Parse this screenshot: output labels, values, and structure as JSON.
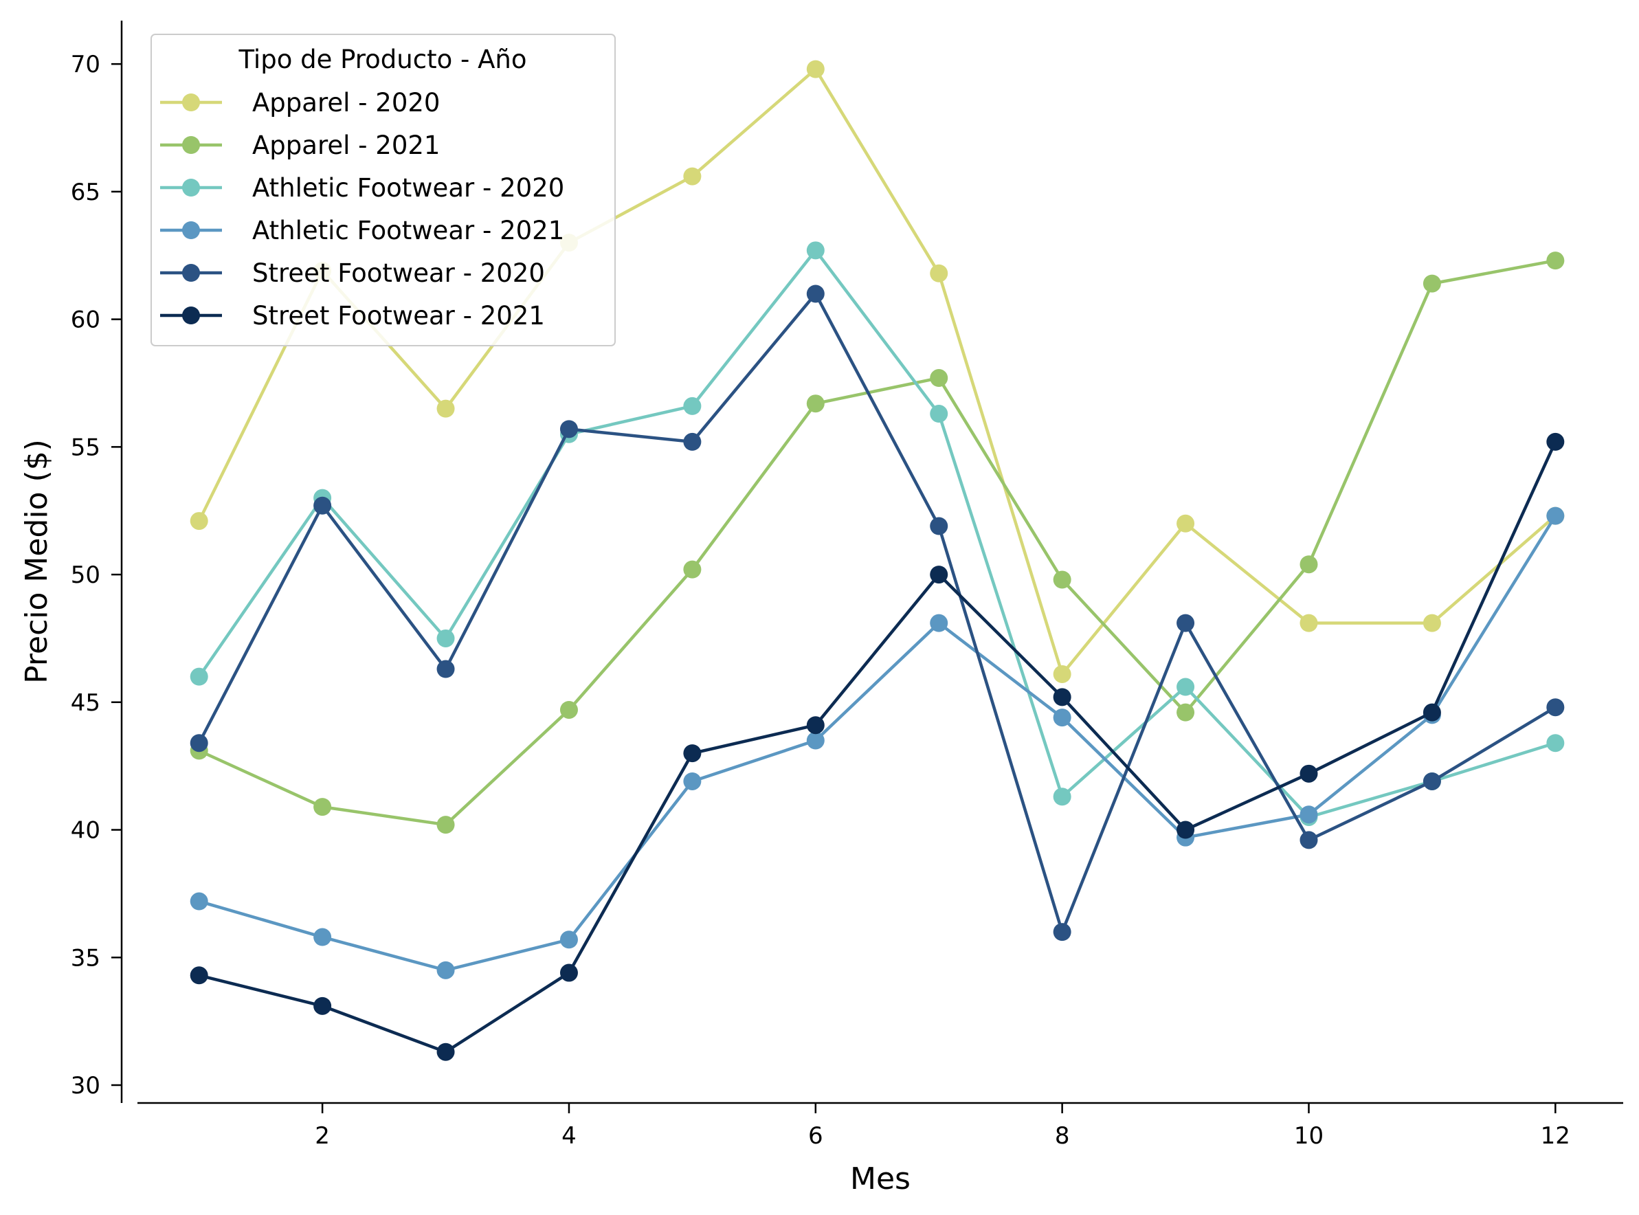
{
  "chart_data": {
    "type": "line",
    "xlabel": "Mes",
    "ylabel": "Precio Medio ($)",
    "xlim": [
      0.5,
      12.55
    ],
    "ylim": [
      29.3,
      71.7
    ],
    "x_ticks": [
      2,
      4,
      6,
      8,
      10,
      12
    ],
    "y_ticks": [
      30,
      35,
      40,
      45,
      50,
      55,
      60,
      65,
      70
    ],
    "grid": false,
    "legend": {
      "title": "Tipo de Producto - Año",
      "placement": "top-left"
    },
    "x": [
      1,
      2,
      3,
      4,
      5,
      6,
      7,
      8,
      9,
      10,
      11,
      12
    ],
    "series": [
      {
        "name": "Apparel - 2020",
        "color": "#d6d878",
        "values": [
          52.1,
          61.9,
          56.5,
          63.0,
          65.6,
          69.8,
          61.8,
          46.1,
          52.0,
          48.1,
          48.1,
          52.3
        ]
      },
      {
        "name": "Apparel - 2021",
        "color": "#98c46a",
        "values": [
          43.1,
          40.9,
          40.2,
          44.7,
          50.2,
          56.7,
          57.7,
          49.8,
          44.6,
          50.4,
          61.4,
          62.3
        ]
      },
      {
        "name": "Athletic Footwear - 2020",
        "color": "#74c8c0",
        "values": [
          46.0,
          53.0,
          47.5,
          55.5,
          56.6,
          62.7,
          56.3,
          41.3,
          45.6,
          40.5,
          41.9,
          43.4
        ]
      },
      {
        "name": "Athletic Footwear - 2021",
        "color": "#5b97c2",
        "values": [
          37.2,
          35.8,
          34.5,
          35.7,
          41.9,
          43.5,
          48.1,
          44.4,
          39.7,
          40.6,
          44.5,
          52.3
        ]
      },
      {
        "name": "Street Footwear - 2020",
        "color": "#2b5283",
        "values": [
          43.4,
          52.7,
          46.3,
          55.7,
          55.2,
          61.0,
          51.9,
          36.0,
          48.1,
          39.6,
          41.9,
          44.8
        ]
      },
      {
        "name": "Street Footwear - 2021",
        "color": "#0c2b52",
        "values": [
          34.3,
          33.1,
          31.3,
          34.4,
          43.0,
          44.1,
          50.0,
          45.2,
          40.0,
          42.2,
          44.6,
          55.2
        ]
      }
    ]
  }
}
